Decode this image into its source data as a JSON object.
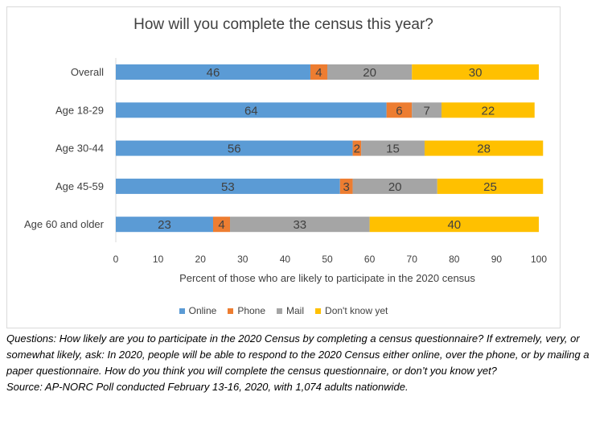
{
  "chart_data": {
    "type": "bar",
    "orientation": "horizontal",
    "stacked": true,
    "title": "How will you complete the census this year?",
    "xlabel": "Percent of those who are likely to participate in the 2020 census",
    "ylabel": "",
    "xlim": [
      0,
      100
    ],
    "xticks": [
      0,
      10,
      20,
      30,
      40,
      50,
      60,
      70,
      80,
      90,
      100
    ],
    "categories": [
      "Overall",
      "Age 18-29",
      "Age 30-44",
      "Age 45-59",
      "Age 60 and older"
    ],
    "series": [
      {
        "name": "Online",
        "color": "#5b9bd5",
        "values": [
          46,
          64,
          56,
          53,
          23
        ]
      },
      {
        "name": "Phone",
        "color": "#ed7d31",
        "values": [
          4,
          6,
          2,
          3,
          4
        ]
      },
      {
        "name": "Mail",
        "color": "#a5a5a5",
        "values": [
          20,
          7,
          15,
          20,
          33
        ]
      },
      {
        "name": "Don't know yet",
        "color": "#ffc000",
        "values": [
          30,
          22,
          28,
          25,
          40
        ]
      }
    ],
    "legend": "bottom",
    "grid": false
  },
  "notes": {
    "questions": "Questions: How likely are you to participate in the 2020 Census by completing a census questionnaire? If extremely, very, or somewhat likely, ask: In 2020, people will be able to respond to the 2020 Census either online, over the phone, or by mailing a paper questionnaire. How do you think you will complete the census questionnaire, or don’t you know yet?",
    "source": "Source: AP-NORC Poll conducted February 13-16, 2020, with 1,074 adults nationwide."
  }
}
